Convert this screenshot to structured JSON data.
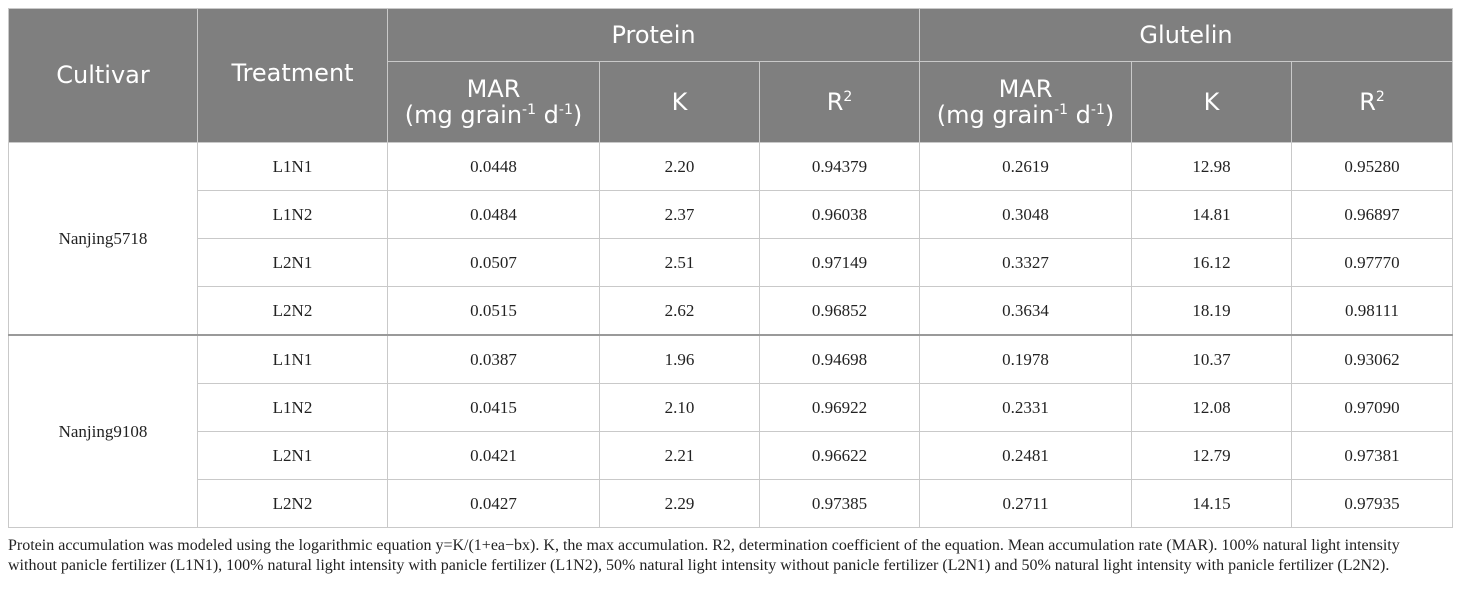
{
  "headers": {
    "cultivar": "Cultivar",
    "treatment": "Treatment",
    "protein": "Protein",
    "glutelin": "Glutelin",
    "mar_line1": "MAR",
    "mar_unit_a": "(mg grain",
    "mar_sup_a": "-1",
    "mar_unit_b": " d",
    "mar_sup_b": "-1",
    "mar_unit_c": ")",
    "k": "K",
    "r2_base": "R",
    "r2_sup": "2"
  },
  "groups": [
    {
      "cultivar": "Nanjing5718",
      "rows": [
        {
          "treatment": "L1N1",
          "protein_mar": "0.0448",
          "protein_k": "2.20",
          "protein_r2": "0.94379",
          "glutelin_mar": "0.2619",
          "glutelin_k": "12.98",
          "glutelin_r2": "0.95280"
        },
        {
          "treatment": "L1N2",
          "protein_mar": "0.0484",
          "protein_k": "2.37",
          "protein_r2": "0.96038",
          "glutelin_mar": "0.3048",
          "glutelin_k": "14.81",
          "glutelin_r2": "0.96897"
        },
        {
          "treatment": "L2N1",
          "protein_mar": "0.0507",
          "protein_k": "2.51",
          "protein_r2": "0.97149",
          "glutelin_mar": "0.3327",
          "glutelin_k": "16.12",
          "glutelin_r2": "0.97770"
        },
        {
          "treatment": "L2N2",
          "protein_mar": "0.0515",
          "protein_k": "2.62",
          "protein_r2": "0.96852",
          "glutelin_mar": "0.3634",
          "glutelin_k": "18.19",
          "glutelin_r2": "0.98111"
        }
      ]
    },
    {
      "cultivar": "Nanjing9108",
      "rows": [
        {
          "treatment": "L1N1",
          "protein_mar": "0.0387",
          "protein_k": "1.96",
          "protein_r2": "0.94698",
          "glutelin_mar": "0.1978",
          "glutelin_k": "10.37",
          "glutelin_r2": "0.93062"
        },
        {
          "treatment": "L1N2",
          "protein_mar": "0.0415",
          "protein_k": "2.10",
          "protein_r2": "0.96922",
          "glutelin_mar": "0.2331",
          "glutelin_k": "12.08",
          "glutelin_r2": "0.97090"
        },
        {
          "treatment": "L2N1",
          "protein_mar": "0.0421",
          "protein_k": "2.21",
          "protein_r2": "0.96622",
          "glutelin_mar": "0.2481",
          "glutelin_k": "12.79",
          "glutelin_r2": "0.97381"
        },
        {
          "treatment": "L2N2",
          "protein_mar": "0.0427",
          "protein_k": "2.29",
          "protein_r2": "0.97385",
          "glutelin_mar": "0.2711",
          "glutelin_k": "14.15",
          "glutelin_r2": "0.97935"
        }
      ]
    }
  ],
  "footnote": "Protein accumulation was modeled using the logarithmic equation y=K/(1+ea−bx). K, the max accumulation. R2, determination coefficient of the equation. Mean accumulation rate (MAR). 100% natural light intensity without panicle fertilizer (L1N1), 100% natural light intensity with panicle fertilizer (L1N2), 50% natural light intensity without panicle fertilizer (L2N1) and 50% natural light intensity with panicle fertilizer (L2N2).",
  "colors": {
    "header_bg": "#7f7f7f",
    "header_text": "#ffffff",
    "border": "#c9c9c9",
    "body_text": "#222222"
  }
}
